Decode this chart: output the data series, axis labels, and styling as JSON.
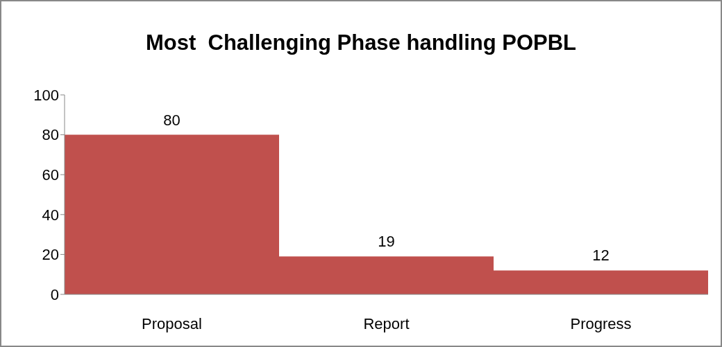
{
  "chart_data": {
    "type": "bar",
    "title": "Most  Challenging Phase handling POPBL",
    "categories": [
      "Proposal",
      "Report",
      "Progress"
    ],
    "values": [
      80,
      19,
      12
    ],
    "color": "#c0504d",
    "ylim": [
      0,
      100
    ],
    "yticks": [
      0,
      20,
      40,
      60,
      80,
      100
    ],
    "data_labels": true,
    "grid": false,
    "legend": false
  }
}
